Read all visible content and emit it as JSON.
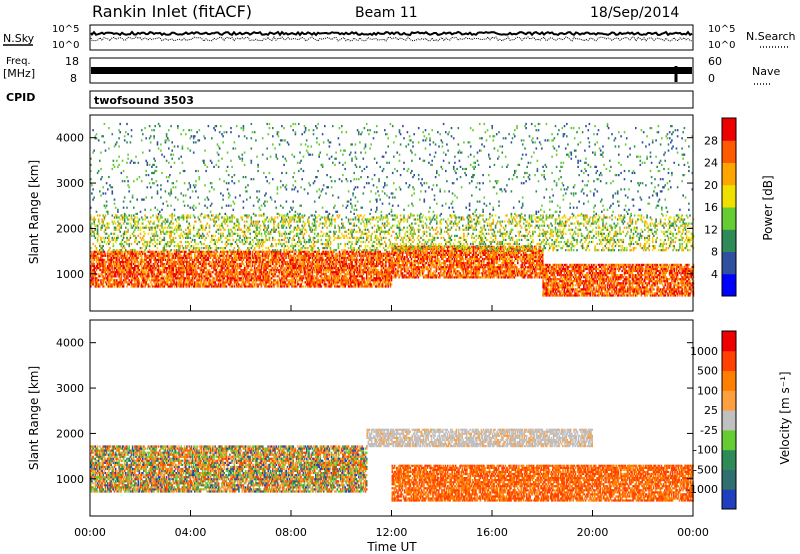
{
  "header": {
    "station": "Rankin Inlet (fitACF)",
    "beam": "Beam 11",
    "date": "18/Sep/2014"
  },
  "top_panels": {
    "nsky_label": "N.Sky",
    "nsky_ticks": [
      "10^5",
      "10^0"
    ],
    "nsearch_label": "N.Search",
    "nsearch_ticks": [
      "10^5",
      "10^0"
    ],
    "freq_label": "Freq.",
    "freq_unit": "[MHz]",
    "freq_ticks": [
      "18",
      "8"
    ],
    "nave_label": "Nave",
    "nave_ticks": [
      "60",
      "0"
    ],
    "cpid_label": "CPID",
    "cpid_value": "twofsound 3503"
  },
  "chart_data": [
    {
      "type": "heatmap",
      "title": "",
      "ylabel": "Slant Range [km]",
      "xlabel": "",
      "ylim": [
        180,
        4500
      ],
      "xlim": [
        0,
        24
      ],
      "yticks": [
        "1000",
        "2000",
        "3000",
        "4000"
      ],
      "colorbar": {
        "label": "Power [dB]",
        "ticks": [
          "4",
          "8",
          "12",
          "16",
          "20",
          "24",
          "28"
        ],
        "colors": [
          "#0000ff",
          "#2f4f9f",
          "#2e8b57",
          "#66cc33",
          "#f0e000",
          "#ffa500",
          "#ff5a00",
          "#ee0000"
        ]
      },
      "bands": [
        {
          "x0": 0,
          "x1": 12,
          "y0": 700,
          "y1": 1500,
          "level": "high"
        },
        {
          "x0": 12,
          "x1": 18,
          "y0": 900,
          "y1": 1600,
          "level": "high"
        },
        {
          "x0": 18,
          "x1": 24,
          "y0": 500,
          "y1": 1200,
          "level": "high"
        },
        {
          "x0": 0,
          "x1": 24,
          "y0": 1500,
          "y1": 2300,
          "level": "mid"
        },
        {
          "x0": 0,
          "x1": 24,
          "y0": 2300,
          "y1": 4300,
          "level": "low"
        }
      ]
    },
    {
      "type": "heatmap",
      "title": "",
      "ylabel": "Slant Range [km]",
      "xlabel": "Time UT",
      "ylim": [
        180,
        4500
      ],
      "xlim": [
        0,
        24
      ],
      "yticks": [
        "1000",
        "2000",
        "3000",
        "4000"
      ],
      "xticks": [
        "00:00",
        "04:00",
        "08:00",
        "12:00",
        "16:00",
        "20:00",
        "00:00"
      ],
      "colorbar": {
        "label": "Velocity [m s⁻¹]",
        "ticks": [
          "1000",
          "500",
          "100",
          "25",
          "-25",
          "-100",
          "-500",
          "-1000"
        ],
        "colors": [
          "#1f3fbf",
          "#2f6f6f",
          "#2e8b57",
          "#66cc33",
          "#c0c0c0",
          "#ffa040",
          "#ff7f00",
          "#ff4000",
          "#ee0000"
        ]
      },
      "bands": [
        {
          "x0": 0,
          "x1": 11,
          "y0": 700,
          "y1": 1700,
          "level": "mixed"
        },
        {
          "x0": 11,
          "x1": 20,
          "y0": 1700,
          "y1": 2100,
          "level": "ground"
        },
        {
          "x0": 12,
          "x1": 24,
          "y0": 500,
          "y1": 1300,
          "level": "away"
        }
      ]
    }
  ]
}
